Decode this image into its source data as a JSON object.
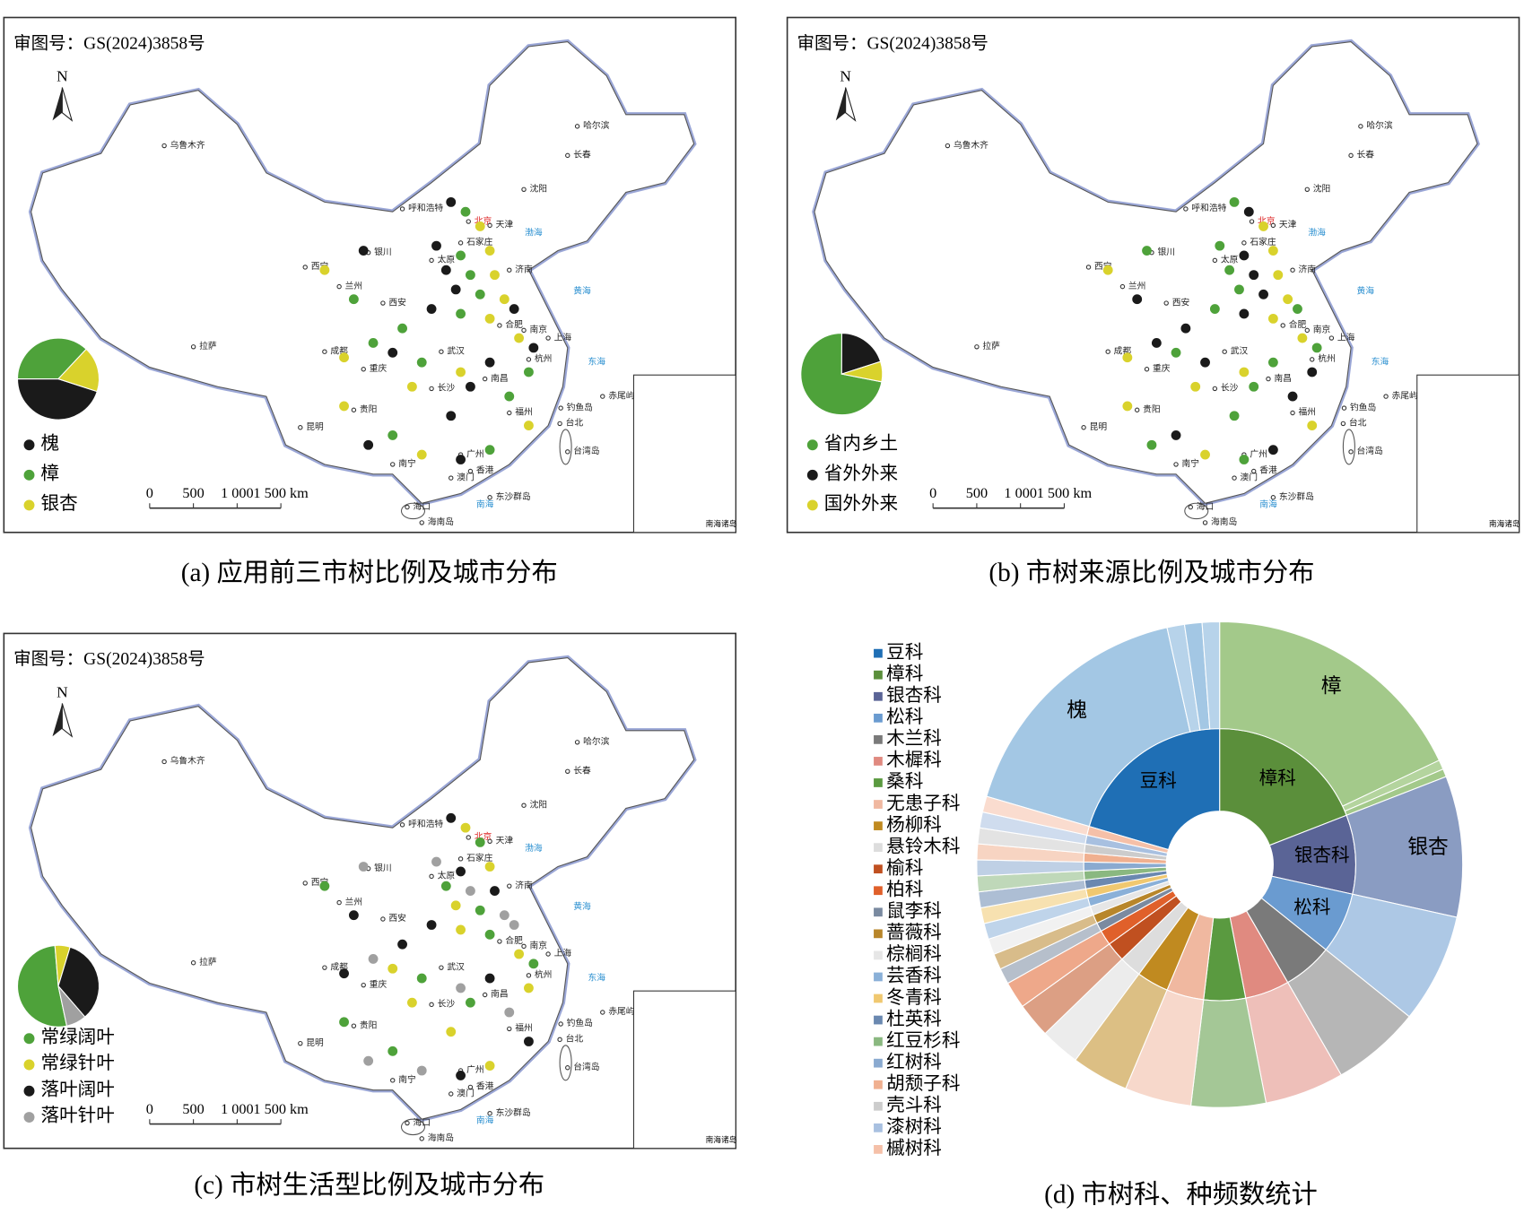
{
  "panels": [
    {
      "review_no": "审图号：GS(2024)3858号",
      "north": "N",
      "caption": "(a) 应用前三市树比例及城市分布",
      "pie": {
        "type": "pie",
        "series": [
          {
            "name": "槐",
            "color": "#1a1a1a",
            "value": 45
          },
          {
            "name": "樟",
            "color": "#4ea23a",
            "value": 37
          },
          {
            "name": "银杏",
            "color": "#d9d22c",
            "value": 18
          }
        ]
      }
    },
    {
      "review_no": "审图号：GS(2024)3858号",
      "north": "N",
      "caption": "(b) 市树来源比例及城市分布",
      "pie": {
        "type": "pie",
        "series": [
          {
            "name": "省内乡土",
            "color": "#4ea23a",
            "value": 72
          },
          {
            "name": "省外外来",
            "color": "#1a1a1a",
            "value": 20
          },
          {
            "name": "国外外来",
            "color": "#d9d22c",
            "value": 8
          }
        ]
      }
    },
    {
      "review_no": "审图号：GS(2024)3858号",
      "north": "N",
      "caption": "(c) 市树生活型比例及城市分布",
      "pie": {
        "type": "pie",
        "series": [
          {
            "name": "常绿阔叶",
            "color": "#4ea23a",
            "value": 52
          },
          {
            "name": "常绿针叶",
            "color": "#d9d22c",
            "value": 6
          },
          {
            "name": "落叶阔叶",
            "color": "#1a1a1a",
            "value": 34
          },
          {
            "name": "落叶针叶",
            "color": "#a0a0a0",
            "value": 8
          }
        ]
      }
    }
  ],
  "map_labels": [
    "乌鲁木齐",
    "哈尔滨",
    "长春",
    "沈阳",
    "呼和浩特",
    "北京",
    "天津",
    "石家庄",
    "太原",
    "济南",
    "银川",
    "西宁",
    "兰州",
    "西安",
    "合肥",
    "南京",
    "上海",
    "杭州",
    "武汉",
    "成都",
    "重庆",
    "长沙",
    "南昌",
    "福州",
    "台北",
    "贵阳",
    "昆明",
    "南宁",
    "广州",
    "香港",
    "澳门",
    "海口",
    "拉萨",
    "海南岛",
    "台湾岛",
    "钓鱼岛",
    "赤尾屿",
    "东沙群岛"
  ],
  "sea_labels": [
    "渤海",
    "黄海",
    "东海",
    "南海"
  ],
  "scale_labels": [
    "0",
    "500",
    "1 000",
    "1 500 km"
  ],
  "inset_label": "南海诸岛",
  "chart_data": {
    "type": "sunburst",
    "caption": "(d) 市树科、种频数统计",
    "families": [
      {
        "name": "豆科",
        "color": "#1f6fb5",
        "value": 19.4,
        "species": [
          {
            "name": "槐",
            "color": "#a3c7e4",
            "value": 16.1
          },
          {
            "name": null,
            "color": "#b7d3ea",
            "value": 1.1
          },
          {
            "name": null,
            "color": "#a3c7e4",
            "value": 1.1
          },
          {
            "name": null,
            "color": "#b7d3ea",
            "value": 1.1
          }
        ]
      },
      {
        "name": "樟科",
        "color": "#5b8f3b",
        "value": 18.1,
        "species": [
          {
            "name": "樟",
            "color": "#a3c98a",
            "value": 17.0
          },
          {
            "name": null,
            "color": "#b4d49e",
            "value": 0.6
          },
          {
            "name": null,
            "color": "#a3c98a",
            "value": 0.5
          }
        ]
      },
      {
        "name": "银杏科",
        "color": "#5a6496",
        "value": 8.9,
        "species": [
          {
            "name": "银杏",
            "color": "#8a9cc2",
            "value": 8.9
          }
        ]
      },
      {
        "name": "松科",
        "color": "#6a9bd0",
        "value": 6.9
      },
      {
        "name": "木兰科",
        "color": "#7a7a7a",
        "value": 5.6
      },
      {
        "name": "木樨科",
        "color": "#e08a80",
        "value": 5.0
      },
      {
        "name": "桑科",
        "color": "#5a9a40",
        "value": 4.7
      },
      {
        "name": "无患子科",
        "color": "#f0b8a0",
        "value": 4.2
      },
      {
        "name": "杨柳科",
        "color": "#c08a20",
        "value": 3.6
      },
      {
        "name": "悬铃木科",
        "color": "#dddddd",
        "value": 2.5
      },
      {
        "name": "榆科",
        "color": "#c05020",
        "value": 2.2
      },
      {
        "name": "柏科",
        "color": "#e0602a",
        "value": 1.7
      },
      {
        "name": "鼠李科",
        "color": "#7a8aa0",
        "value": 1.0
      },
      {
        "name": "蔷薇科",
        "color": "#b8862a",
        "value": 1.0
      },
      {
        "name": "棕榈科",
        "color": "#e6e6e6",
        "value": 1.0
      },
      {
        "name": "芸香科",
        "color": "#8ab0d8",
        "value": 1.0
      },
      {
        "name": "冬青科",
        "color": "#f0c870",
        "value": 1.0
      },
      {
        "name": "杜英科",
        "color": "#6a88b0",
        "value": 1.0
      },
      {
        "name": "红豆杉科",
        "color": "#8ab880",
        "value": 1.0
      },
      {
        "name": "红树科",
        "color": "#8aaad0",
        "value": 1.0
      },
      {
        "name": "胡颓子科",
        "color": "#f0b090",
        "value": 1.0
      },
      {
        "name": "壳斗科",
        "color": "#cccccc",
        "value": 1.0
      },
      {
        "name": "漆树科",
        "color": "#a8c0e0",
        "value": 1.0
      },
      {
        "name": "槭树科",
        "color": "#f5c0a8",
        "value": 1.0
      }
    ]
  }
}
